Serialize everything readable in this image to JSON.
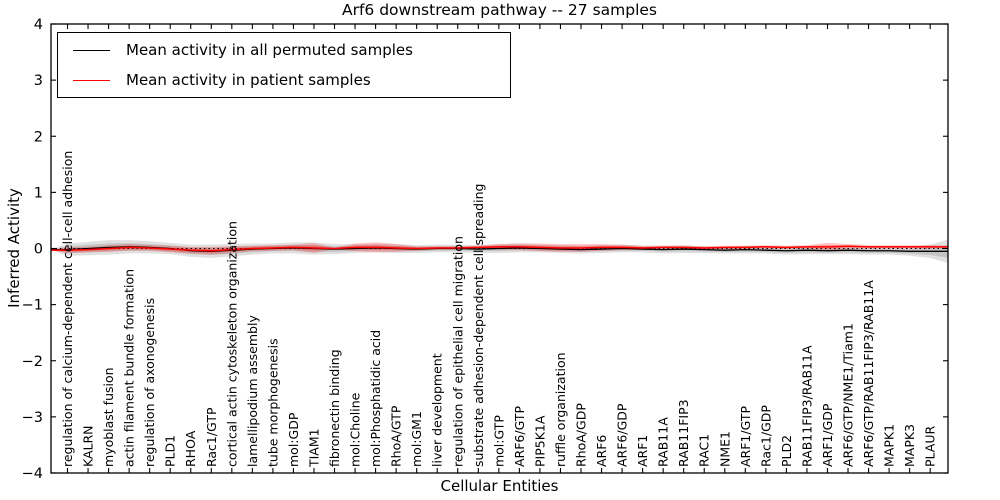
{
  "chart_data": {
    "type": "line",
    "title": "Arf6 downstream pathway -- 27 samples",
    "xlabel": "Cellular Entities",
    "ylabel": "Inferred Activity",
    "ylim": [
      -4,
      4
    ],
    "yticks": [
      4,
      3,
      2,
      1,
      0,
      -1,
      -2,
      -3,
      -4
    ],
    "ytick_labels": [
      "4",
      "3",
      "2",
      "1",
      "0",
      "−1",
      "−2",
      "−3",
      "−4"
    ],
    "grid": false,
    "legend_position": "upper left",
    "zero_line": true,
    "categories": [
      "regulation of calcium-dependent cell-cell adhesion",
      "KALRN",
      "myoblast fusion",
      "actin filament bundle formation",
      "regulation of axonogenesis",
      "PLD1",
      "RHOA",
      "Rac1/GTP",
      "cortical actin cytoskeleton organization",
      "lamellipodium assembly",
      "tube morphogenesis",
      "mol:GDP",
      "TIAM1",
      "fibronectin binding",
      "mol:Choline",
      "mol:Phosphatidic acid",
      "RhoA/GTP",
      "mol:GM1",
      "liver development",
      "regulation of epithelial cell migration",
      "substrate adhesion-dependent cell spreading",
      "mol:GTP",
      "ARF6/GTP",
      "PIP5K1A",
      "ruffle organization",
      "RhoA/GDP",
      "ARF6",
      "ARF6/GDP",
      "ARF1",
      "RAB11A",
      "RAB11FIP3",
      "RAC1",
      "NME1",
      "ARF1/GTP",
      "Rac1/GDP",
      "PLD2",
      "RAB11FIP3/RAB11A",
      "ARF1/GDP",
      "ARF6/GTP/NME1/Tiam1",
      "ARF6/GTP/RAB11FIP3/RAB11A",
      "MAPK1",
      "MAPK3",
      "PLAUR"
    ],
    "series": [
      {
        "name": "Mean activity in all permuted samples",
        "color": "#000000",
        "band_color": "rgba(0,0,0,0.12)",
        "values": [
          -0.02,
          0.0,
          0.02,
          0.03,
          0.02,
          0.0,
          -0.04,
          -0.05,
          -0.03,
          -0.01,
          0.0,
          0.01,
          0.0,
          -0.01,
          0.0,
          0.01,
          0.0,
          -0.01,
          0.0,
          0.0,
          -0.01,
          0.0,
          0.01,
          0.0,
          -0.01,
          -0.02,
          -0.01,
          0.0,
          -0.01,
          -0.02,
          -0.01,
          -0.02,
          -0.03,
          -0.02,
          -0.03,
          -0.04,
          -0.03,
          -0.04,
          -0.03,
          -0.04,
          -0.04,
          -0.05,
          -0.05
        ],
        "std": [
          0.11,
          0.12,
          0.13,
          0.12,
          0.11,
          0.1,
          0.11,
          0.12,
          0.11,
          0.1,
          0.09,
          0.1,
          0.11,
          0.09,
          0.08,
          0.08,
          0.08,
          0.07,
          0.07,
          0.07,
          0.07,
          0.08,
          0.08,
          0.07,
          0.07,
          0.07,
          0.07,
          0.07,
          0.06,
          0.07,
          0.07,
          0.06,
          0.06,
          0.07,
          0.06,
          0.07,
          0.07,
          0.06,
          0.07,
          0.07,
          0.07,
          0.08,
          0.12
        ],
        "edge_left": {
          "value": -0.02,
          "std": 0.005
        },
        "edge_right": {
          "value": -0.05,
          "std": 0.21
        }
      },
      {
        "name": "Mean activity in patient samples",
        "color": "#ff0000",
        "band_color": "rgba(255,0,0,0.22)",
        "values": [
          -0.03,
          -0.02,
          0.0,
          0.02,
          0.01,
          -0.01,
          -0.03,
          -0.04,
          -0.02,
          0.0,
          0.01,
          0.02,
          0.01,
          0.0,
          0.02,
          0.02,
          0.01,
          0.0,
          0.01,
          0.01,
          0.02,
          0.03,
          0.03,
          0.02,
          0.01,
          0.01,
          0.02,
          0.02,
          0.01,
          0.02,
          0.02,
          0.01,
          0.02,
          0.02,
          0.03,
          0.02,
          0.03,
          0.03,
          0.04,
          0.03,
          0.03,
          0.03,
          0.03
        ],
        "std": [
          0.05,
          0.05,
          0.06,
          0.06,
          0.05,
          0.06,
          0.06,
          0.07,
          0.06,
          0.05,
          0.05,
          0.05,
          0.09,
          0.015,
          0.07,
          0.09,
          0.07,
          0.04,
          0.03,
          0.03,
          0.03,
          0.05,
          0.06,
          0.07,
          0.07,
          0.07,
          0.06,
          0.05,
          0.04,
          0.03,
          0.03,
          0.03,
          0.03,
          0.03,
          0.03,
          0.03,
          0.03,
          0.07,
          0.04,
          0.03,
          0.03,
          0.03,
          0.03
        ],
        "edge_left": {
          "value": -0.03,
          "std": 0.005
        },
        "edge_right": {
          "value": 0.03,
          "std": 0.02
        }
      }
    ]
  }
}
